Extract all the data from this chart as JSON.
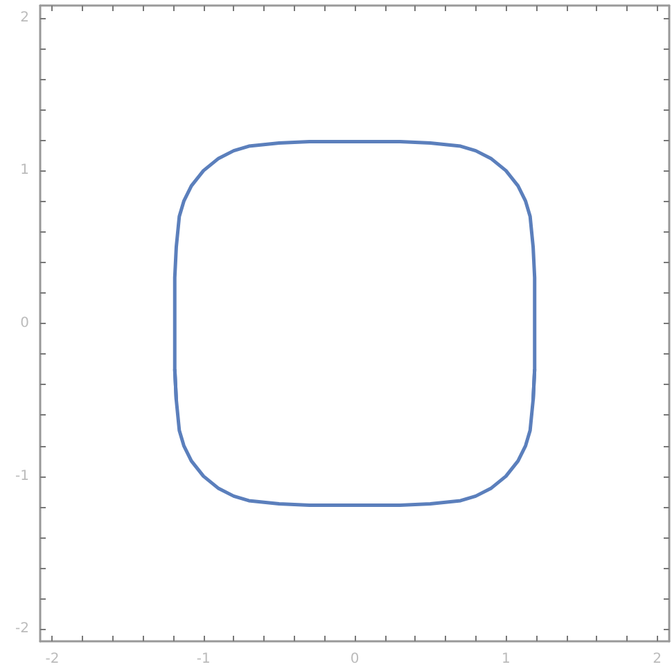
{
  "chart_data": {
    "type": "line",
    "marker": "none",
    "line_style": "solid",
    "xlim": [
      -2.08,
      2.08
    ],
    "ylim": [
      -2.08,
      2.08
    ],
    "xticks": [
      -2,
      {
        "value": -1.8,
        "label": null
      },
      {
        "value": -1.6,
        "label": null
      },
      {
        "value": -1.4,
        "label": null
      },
      {
        "value": -1.2,
        "label": null
      },
      -1,
      {
        "value": -0.8,
        "label": null
      },
      {
        "value": -0.6,
        "label": null
      },
      {
        "value": -0.4,
        "label": null
      },
      {
        "value": -0.2,
        "label": null
      },
      0,
      {
        "value": 0.2,
        "label": null
      },
      {
        "value": 0.4,
        "label": null
      },
      {
        "value": 0.6,
        "label": null
      },
      {
        "value": 0.8,
        "label": null
      },
      1,
      {
        "value": 1.2,
        "label": null
      },
      {
        "value": 1.4,
        "label": null
      },
      {
        "value": 1.6,
        "label": null
      },
      {
        "value": 1.8,
        "label": null
      },
      2
    ],
    "yticks": [
      -2,
      {
        "value": -1.8,
        "label": null
      },
      {
        "value": -1.6,
        "label": null
      },
      {
        "value": -1.4,
        "label": null
      },
      {
        "value": -1.2,
        "label": null
      },
      -1,
      {
        "value": -0.8,
        "label": null
      },
      {
        "value": -0.6,
        "label": null
      },
      {
        "value": -0.4,
        "label": null
      },
      {
        "value": -0.2,
        "label": null
      },
      0,
      {
        "value": 0.2,
        "label": null
      },
      {
        "value": 0.4,
        "label": null
      },
      {
        "value": 0.6,
        "label": null
      },
      {
        "value": 0.8,
        "label": null
      },
      1,
      {
        "value": 1.2,
        "label": null
      },
      {
        "value": 1.4,
        "label": null
      },
      {
        "value": 1.6,
        "label": null
      },
      {
        "value": 1.8,
        "label": null
      },
      2
    ],
    "series": [
      {
        "color": "#5b7fbc",
        "x": [
          -1.18,
          -1.19,
          -1.19,
          -1.19,
          -1.18,
          -1.16,
          -1.13,
          -1.08,
          -1,
          -0.9,
          -0.8,
          -0.7,
          -0.5,
          -0.3,
          0,
          0.3,
          0.5,
          0.7,
          0.8,
          0.9,
          1,
          1.08,
          1.13,
          1.16,
          1.18,
          1.19,
          1.19,
          1.19,
          1.18
        ],
        "values": [
          -0.5,
          -0.3,
          0,
          0.3,
          0.5,
          0.7,
          0.8,
          0.9,
          1,
          1.08,
          1.13,
          1.16,
          1.18,
          1.19,
          1.19,
          1.19,
          1.18,
          1.16,
          1.13,
          1.08,
          1,
          0.9,
          0.8,
          0.7,
          0.5,
          0.3,
          0,
          -0.3,
          -0.5
        ]
      },
      {
        "color": "#5b7fbc",
        "x": [
          -1.19,
          -1.18,
          -1.16,
          -1.13,
          -1.08,
          -1,
          -0.9,
          -0.8,
          -0.7,
          -0.5,
          -0.3,
          0,
          0.3,
          0.5,
          0.7,
          0.8,
          0.9,
          1,
          1.08,
          1.13,
          1.16,
          1.18,
          1.19
        ],
        "values": [
          -0.3,
          -0.5,
          -0.7,
          -0.8,
          -0.9,
          -1,
          -1.08,
          -1.13,
          -1.16,
          -1.18,
          -1.19,
          -1.19,
          -1.19,
          -1.18,
          -1.16,
          -1.13,
          -1.08,
          -1,
          -0.9,
          -0.8,
          -0.7,
          -0.5,
          -0.3
        ]
      }
    ]
  }
}
